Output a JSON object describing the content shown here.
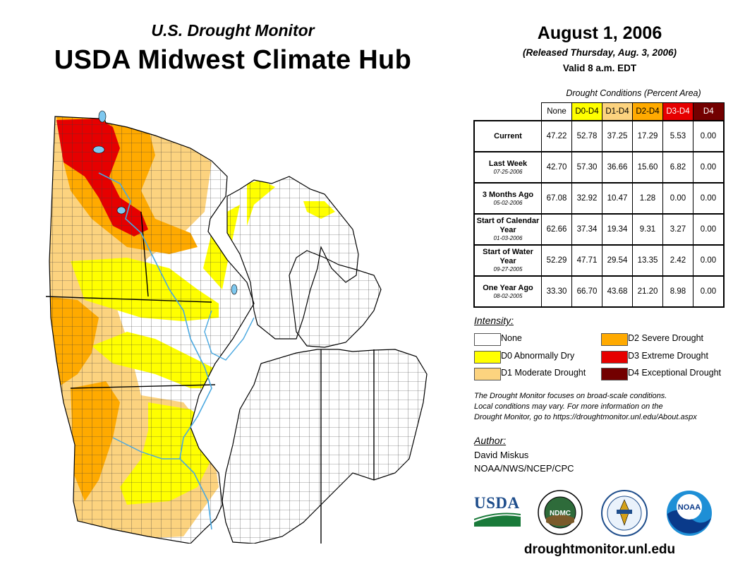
{
  "header": {
    "subtitle": "U.S. Drought Monitor",
    "title": "USDA Midwest Climate Hub"
  },
  "info": {
    "date": "August 1, 2006",
    "released": "(Released Thursday, Aug. 3, 2006)",
    "valid": "Valid 8 a.m. EDT"
  },
  "table": {
    "title": "Drought Conditions (Percent Area)",
    "columns": [
      "None",
      "D0-D4",
      "D1-D4",
      "D2-D4",
      "D3-D4",
      "D4"
    ],
    "column_colors": [
      "#ffffff",
      "#ffff00",
      "#fcd37f",
      "#ffaa00",
      "#e60000",
      "#730000"
    ],
    "column_text_colors": [
      "#000000",
      "#000000",
      "#000000",
      "#000000",
      "#ffffff",
      "#ffffff"
    ],
    "rows": [
      {
        "label": "Current",
        "date": "",
        "values": [
          "47.22",
          "52.78",
          "37.25",
          "17.29",
          "5.53",
          "0.00"
        ]
      },
      {
        "label": "Last Week",
        "date": "07-25-2006",
        "values": [
          "42.70",
          "57.30",
          "36.66",
          "15.60",
          "6.82",
          "0.00"
        ]
      },
      {
        "label": "3 Months Ago",
        "date": "05-02-2006",
        "values": [
          "67.08",
          "32.92",
          "10.47",
          "1.28",
          "0.00",
          "0.00"
        ]
      },
      {
        "label": "Start of Calendar Year",
        "date": "01-03-2006",
        "values": [
          "62.66",
          "37.34",
          "19.34",
          "9.31",
          "3.27",
          "0.00"
        ]
      },
      {
        "label": "Start of Water Year",
        "date": "09-27-2005",
        "values": [
          "52.29",
          "47.71",
          "29.54",
          "13.35",
          "2.42",
          "0.00"
        ]
      },
      {
        "label": "One Year Ago",
        "date": "08-02-2005",
        "values": [
          "33.30",
          "66.70",
          "43.68",
          "21.20",
          "8.98",
          "0.00"
        ]
      }
    ]
  },
  "legend": {
    "title": "Intensity:",
    "items": [
      {
        "label": "None",
        "color": "#ffffff"
      },
      {
        "label": "D0 Abnormally Dry",
        "color": "#ffff00"
      },
      {
        "label": "D1 Moderate Drought",
        "color": "#fcd37f"
      },
      {
        "label": "D2 Severe Drought",
        "color": "#ffaa00"
      },
      {
        "label": "D3 Extreme Drought",
        "color": "#e60000"
      },
      {
        "label": "D4 Exceptional Drought",
        "color": "#730000"
      }
    ]
  },
  "note": [
    "The Drought Monitor focuses on broad-scale conditions.",
    "Local conditions may vary. For more information on the",
    "Drought Monitor, go to https://droughtmonitor.unl.edu/About.aspx"
  ],
  "author": {
    "title": "Author:",
    "name": "David Miskus",
    "org": "NOAA/NWS/NCEP/CPC"
  },
  "logos": {
    "usda": "USDA",
    "ndmc": "NDMC",
    "noaa": "NOAA"
  },
  "website": "droughtmonitor.unl.edu"
}
